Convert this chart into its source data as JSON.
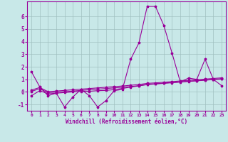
{
  "xlabel": "Windchill (Refroidissement éolien,°C)",
  "x": [
    0,
    1,
    2,
    3,
    4,
    5,
    6,
    7,
    8,
    9,
    10,
    11,
    12,
    13,
    14,
    15,
    16,
    17,
    18,
    19,
    20,
    21,
    22,
    23
  ],
  "line1": [
    1.6,
    0.4,
    -0.3,
    -0.1,
    -1.2,
    -0.4,
    0.2,
    -0.3,
    -1.2,
    -0.7,
    0.1,
    0.2,
    2.6,
    3.9,
    6.8,
    6.8,
    5.3,
    3.1,
    0.8,
    1.1,
    1.0,
    2.6,
    1.0,
    0.5
  ],
  "line2": [
    -0.3,
    0.1,
    -0.15,
    -0.1,
    -0.05,
    0.0,
    0.05,
    0.05,
    0.1,
    0.12,
    0.18,
    0.28,
    0.38,
    0.48,
    0.58,
    0.63,
    0.68,
    0.73,
    0.78,
    0.83,
    0.88,
    0.93,
    0.98,
    1.03
  ],
  "line3": [
    0.05,
    0.25,
    -0.05,
    -0.02,
    0.02,
    0.07,
    0.12,
    0.17,
    0.22,
    0.27,
    0.32,
    0.37,
    0.43,
    0.5,
    0.6,
    0.65,
    0.7,
    0.75,
    0.8,
    0.85,
    0.9,
    0.95,
    1.0,
    1.05
  ],
  "line4": [
    0.15,
    0.35,
    0.02,
    0.07,
    0.12,
    0.17,
    0.22,
    0.27,
    0.32,
    0.37,
    0.42,
    0.47,
    0.53,
    0.59,
    0.68,
    0.72,
    0.77,
    0.82,
    0.87,
    0.92,
    0.97,
    1.02,
    1.07,
    1.12
  ],
  "line_color": "#990099",
  "bg_color": "#c8e8e8",
  "grid_color": "#a0c0c0",
  "ylim": [
    -1.5,
    7.2
  ],
  "yticks": [
    -1,
    0,
    1,
    2,
    3,
    4,
    5,
    6
  ],
  "xlim": [
    -0.5,
    23.5
  ]
}
